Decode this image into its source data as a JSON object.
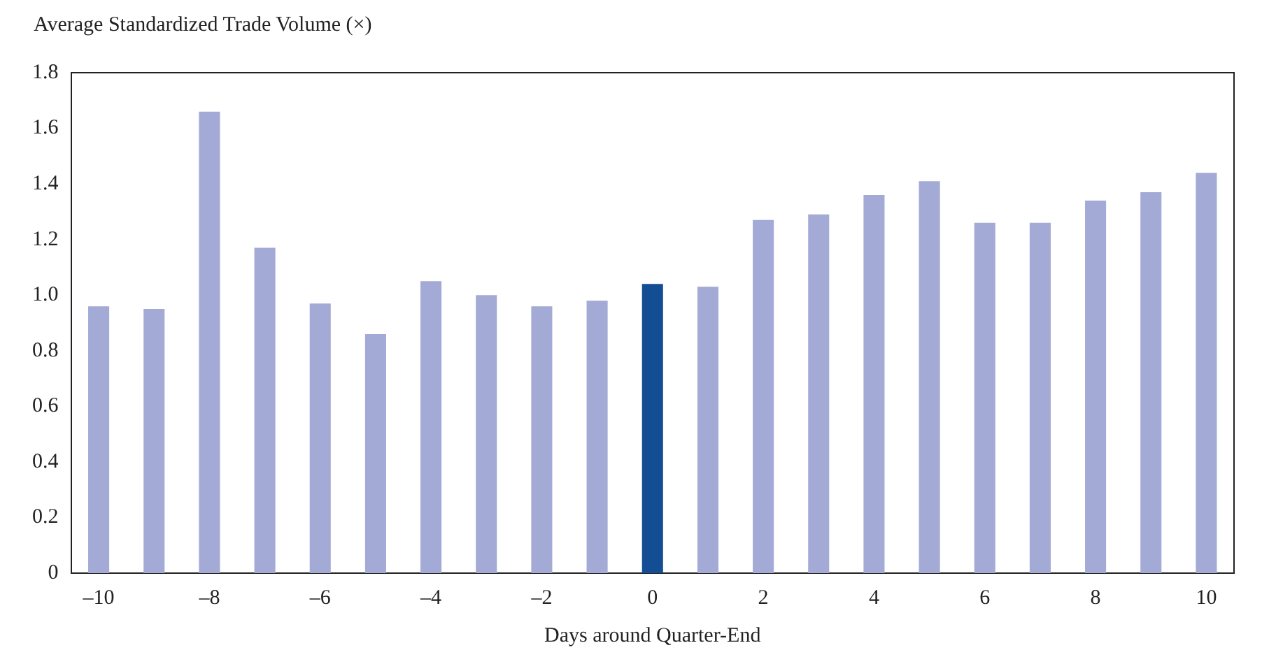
{
  "chart_data": {
    "type": "bar",
    "xlabel": "Days around Quarter-End",
    "ylabel": "Average Standardized Trade Volume (×)",
    "categories": [
      "–10",
      null,
      "–8",
      null,
      "–6",
      null,
      "–4",
      null,
      "–2",
      null,
      "0",
      null,
      "2",
      null,
      "4",
      null,
      "6",
      null,
      "8",
      null,
      "10"
    ],
    "values": [
      0.96,
      0.95,
      1.66,
      1.17,
      0.97,
      0.86,
      1.05,
      1.0,
      0.96,
      0.98,
      1.04,
      1.03,
      1.27,
      1.29,
      1.36,
      1.41,
      1.26,
      1.26,
      1.34,
      1.37,
      1.44
    ],
    "colors": [
      "#a4aad6",
      "#a4aad6",
      "#a4aad6",
      "#a4aad6",
      "#a4aad6",
      "#a4aad6",
      "#a4aad6",
      "#a4aad6",
      "#a4aad6",
      "#a4aad6",
      "#134d93",
      "#a4aad6",
      "#a4aad6",
      "#a4aad6",
      "#a4aad6",
      "#a4aad6",
      "#a4aad6",
      "#a4aad6",
      "#a4aad6",
      "#a4aad6",
      "#a4aad6"
    ],
    "ylim": [
      0,
      1.8
    ],
    "yticks": [
      {
        "value": 0,
        "label": "0"
      },
      0.2,
      0.4,
      0.6,
      0.8,
      {
        "value": 1,
        "label": "1.0"
      },
      1.2,
      1.4,
      1.6,
      1.8
    ],
    "grid": false,
    "legend": false
  }
}
